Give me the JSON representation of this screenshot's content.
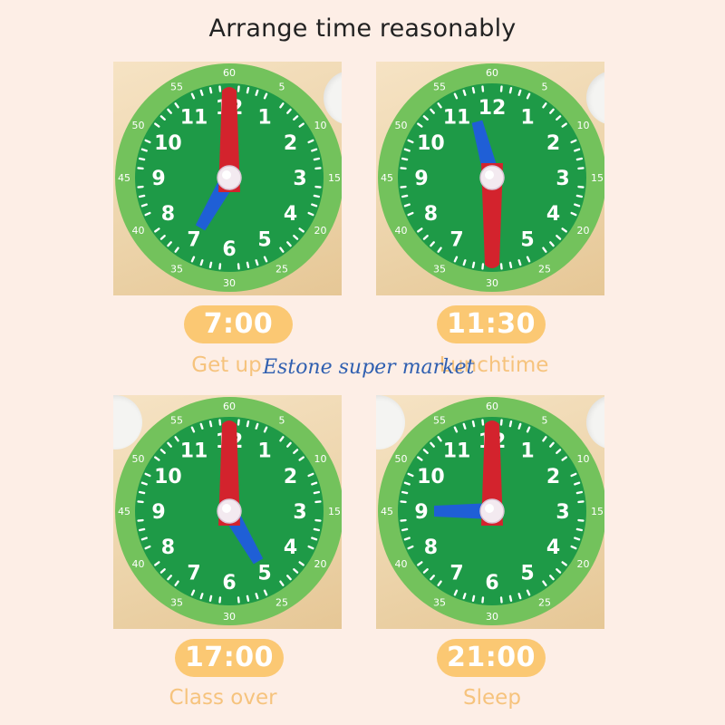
{
  "page": {
    "title": "Arrange time reasonably"
  },
  "watermark": "Estone super market",
  "colors": {
    "background": "#fdeee6",
    "outer_ring": "#73c25c",
    "dial": "#1e9a47",
    "minute_hand": "#d3232d",
    "hour_hand": "#1f5fd6",
    "pill": "#fbc873",
    "caption": "#f6c37d"
  },
  "dial_numbers": [
    "12",
    "1",
    "2",
    "3",
    "4",
    "5",
    "6",
    "7",
    "8",
    "9",
    "10",
    "11"
  ],
  "ring_numbers": [
    "60",
    "5",
    "10",
    "15",
    "20",
    "25",
    "30",
    "35",
    "40",
    "45",
    "50",
    "55"
  ],
  "clocks": [
    {
      "time_label": "7:00",
      "activity": "Get up",
      "hour": 7,
      "minute": 0
    },
    {
      "time_label": "11:30",
      "activity": "Lunchtime",
      "hour": 11,
      "minute": 30
    },
    {
      "time_label": "17:00",
      "activity": "Class over",
      "hour": 17,
      "minute": 0
    },
    {
      "time_label": "21:00",
      "activity": "Sleep",
      "hour": 21,
      "minute": 0
    }
  ]
}
